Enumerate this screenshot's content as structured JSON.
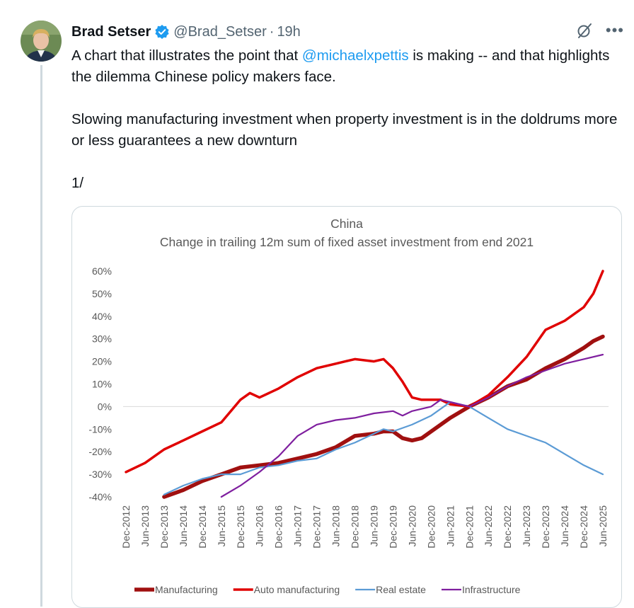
{
  "tweet": {
    "author_name": "Brad Setser",
    "handle": "@Brad_Setser",
    "separator": "·",
    "time": "19h",
    "text_1a": "A chart that illustrates the point that ",
    "mention": "@michaelxpettis",
    "text_1b": " is making -- and that highlights the dilemma Chinese policy makers face.",
    "text_2": "Slowing manufacturing investment when property investment is in the doldrums more or less guarantees a new downturn",
    "text_3": "1/",
    "colors": {
      "link": "#1d9bf0",
      "verified": "#1d9bf0",
      "secondary_text": "#536471"
    },
    "icons": [
      "verified-badge-icon",
      "grok-icon",
      "more-icon"
    ]
  },
  "chart_data": {
    "type": "line",
    "title": "China",
    "subtitle": "Change in trailing 12m sum of fixed asset investment from end 2021",
    "ylim": [
      -40,
      60
    ],
    "y_ticks": [
      60,
      50,
      40,
      30,
      20,
      10,
      0,
      -10,
      -20,
      -30,
      -40
    ],
    "y_tick_labels": [
      "60%",
      "50%",
      "40%",
      "30%",
      "20%",
      "10%",
      "0%",
      "-10%",
      "-20%",
      "-30%",
      "-40%"
    ],
    "x_ticks": [
      "Dec-2012",
      "Jun-2013",
      "Dec-2013",
      "Jun-2014",
      "Dec-2014",
      "Jun-2015",
      "Dec-2015",
      "Jun-2016",
      "Dec-2016",
      "Jun-2017",
      "Dec-2017",
      "Jun-2018",
      "Dec-2018",
      "Jun-2019",
      "Dec-2019",
      "Jun-2020",
      "Dec-2020",
      "Jun-2021",
      "Dec-2021",
      "Jun-2022",
      "Dec-2022",
      "Jun-2023",
      "Dec-2023",
      "Jun-2024",
      "Dec-2024",
      "Jun-2025"
    ],
    "x_range": [
      "Dec-2012",
      "Jun-2025"
    ],
    "legend_position": "bottom",
    "grid": false,
    "series": [
      {
        "name": "Manufacturing",
        "color": "#a01010",
        "points": [
          [
            "Dec-2013",
            -40
          ],
          [
            "Jun-2014",
            -37
          ],
          [
            "Dec-2014",
            -33
          ],
          [
            "Jun-2015",
            -30
          ],
          [
            "Dec-2015",
            -27
          ],
          [
            "Jun-2016",
            -26
          ],
          [
            "Dec-2016",
            -25
          ],
          [
            "Jun-2017",
            -23
          ],
          [
            "Dec-2017",
            -21
          ],
          [
            "Jun-2018",
            -18
          ],
          [
            "Dec-2018",
            -13
          ],
          [
            "Jun-2019",
            -12
          ],
          [
            "Sep-2019",
            -11
          ],
          [
            "Dec-2019",
            -11
          ],
          [
            "Mar-2020",
            -14
          ],
          [
            "Jun-2020",
            -15
          ],
          [
            "Sep-2020",
            -14
          ],
          [
            "Dec-2020",
            -11
          ],
          [
            "Jun-2021",
            -5
          ],
          [
            "Dec-2021",
            0
          ],
          [
            "Jun-2022",
            4
          ],
          [
            "Dec-2022",
            9
          ],
          [
            "Jun-2023",
            12
          ],
          [
            "Dec-2023",
            17
          ],
          [
            "Jun-2024",
            21
          ],
          [
            "Dec-2024",
            26
          ],
          [
            "Mar-2025",
            29
          ],
          [
            "Jun-2025",
            31
          ]
        ]
      },
      {
        "name": "Auto manufacturing",
        "color": "#e00000",
        "points": [
          [
            "Dec-2012",
            -29
          ],
          [
            "Jun-2013",
            -25
          ],
          [
            "Dec-2013",
            -19
          ],
          [
            "Jun-2014",
            -15
          ],
          [
            "Dec-2014",
            -11
          ],
          [
            "Jun-2015",
            -7
          ],
          [
            "Dec-2015",
            3
          ],
          [
            "Mar-2016",
            6
          ],
          [
            "Jun-2016",
            4
          ],
          [
            "Dec-2016",
            8
          ],
          [
            "Jun-2017",
            13
          ],
          [
            "Dec-2017",
            17
          ],
          [
            "Jun-2018",
            19
          ],
          [
            "Sep-2018",
            20
          ],
          [
            "Dec-2018",
            21
          ],
          [
            "Jun-2019",
            20
          ],
          [
            "Sep-2019",
            21
          ],
          [
            "Dec-2019",
            17
          ],
          [
            "Mar-2020",
            11
          ],
          [
            "Jun-2020",
            4
          ],
          [
            "Sep-2020",
            3
          ],
          [
            "Dec-2020",
            3
          ],
          [
            "Mar-2021",
            3
          ],
          [
            "Jun-2021",
            1
          ],
          [
            "Dec-2021",
            0
          ],
          [
            "Jun-2022",
            5
          ],
          [
            "Dec-2022",
            13
          ],
          [
            "Jun-2023",
            22
          ],
          [
            "Dec-2023",
            34
          ],
          [
            "Jun-2024",
            38
          ],
          [
            "Dec-2024",
            44
          ],
          [
            "Mar-2025",
            50
          ],
          [
            "Jun-2025",
            60
          ]
        ]
      },
      {
        "name": "Real estate",
        "color": "#5b9bd5",
        "points": [
          [
            "Dec-2013",
            -39
          ],
          [
            "Jun-2014",
            -35
          ],
          [
            "Dec-2014",
            -32
          ],
          [
            "Jun-2015",
            -30
          ],
          [
            "Dec-2015",
            -30
          ],
          [
            "Jun-2016",
            -27
          ],
          [
            "Dec-2016",
            -26
          ],
          [
            "Jun-2017",
            -24
          ],
          [
            "Dec-2017",
            -23
          ],
          [
            "Jun-2018",
            -19
          ],
          [
            "Dec-2018",
            -16
          ],
          [
            "Jun-2019",
            -12
          ],
          [
            "Sep-2019",
            -10
          ],
          [
            "Dec-2019",
            -11
          ],
          [
            "Jun-2020",
            -8
          ],
          [
            "Dec-2020",
            -4
          ],
          [
            "Jun-2021",
            2
          ],
          [
            "Dec-2021",
            0
          ],
          [
            "Jun-2022",
            -5
          ],
          [
            "Dec-2022",
            -10
          ],
          [
            "Jun-2023",
            -13
          ],
          [
            "Dec-2023",
            -16
          ],
          [
            "Jun-2024",
            -21
          ],
          [
            "Dec-2024",
            -26
          ],
          [
            "Jun-2025",
            -30
          ]
        ]
      },
      {
        "name": "Infrastructure",
        "color": "#7f1f9f",
        "points": [
          [
            "Jun-2015",
            -40
          ],
          [
            "Dec-2015",
            -35
          ],
          [
            "Jun-2016",
            -29
          ],
          [
            "Dec-2016",
            -22
          ],
          [
            "Jun-2017",
            -13
          ],
          [
            "Dec-2017",
            -8
          ],
          [
            "Jun-2018",
            -6
          ],
          [
            "Dec-2018",
            -5
          ],
          [
            "Jun-2019",
            -3
          ],
          [
            "Dec-2019",
            -2
          ],
          [
            "Mar-2020",
            -4
          ],
          [
            "Jun-2020",
            -2
          ],
          [
            "Dec-2020",
            0
          ],
          [
            "Mar-2021",
            3
          ],
          [
            "Jun-2021",
            2
          ],
          [
            "Dec-2021",
            0
          ],
          [
            "Jun-2022",
            4
          ],
          [
            "Dec-2022",
            9
          ],
          [
            "Jun-2023",
            13
          ],
          [
            "Dec-2023",
            16
          ],
          [
            "Jun-2024",
            19
          ],
          [
            "Dec-2024",
            21
          ],
          [
            "Jun-2025",
            23
          ]
        ]
      }
    ]
  }
}
